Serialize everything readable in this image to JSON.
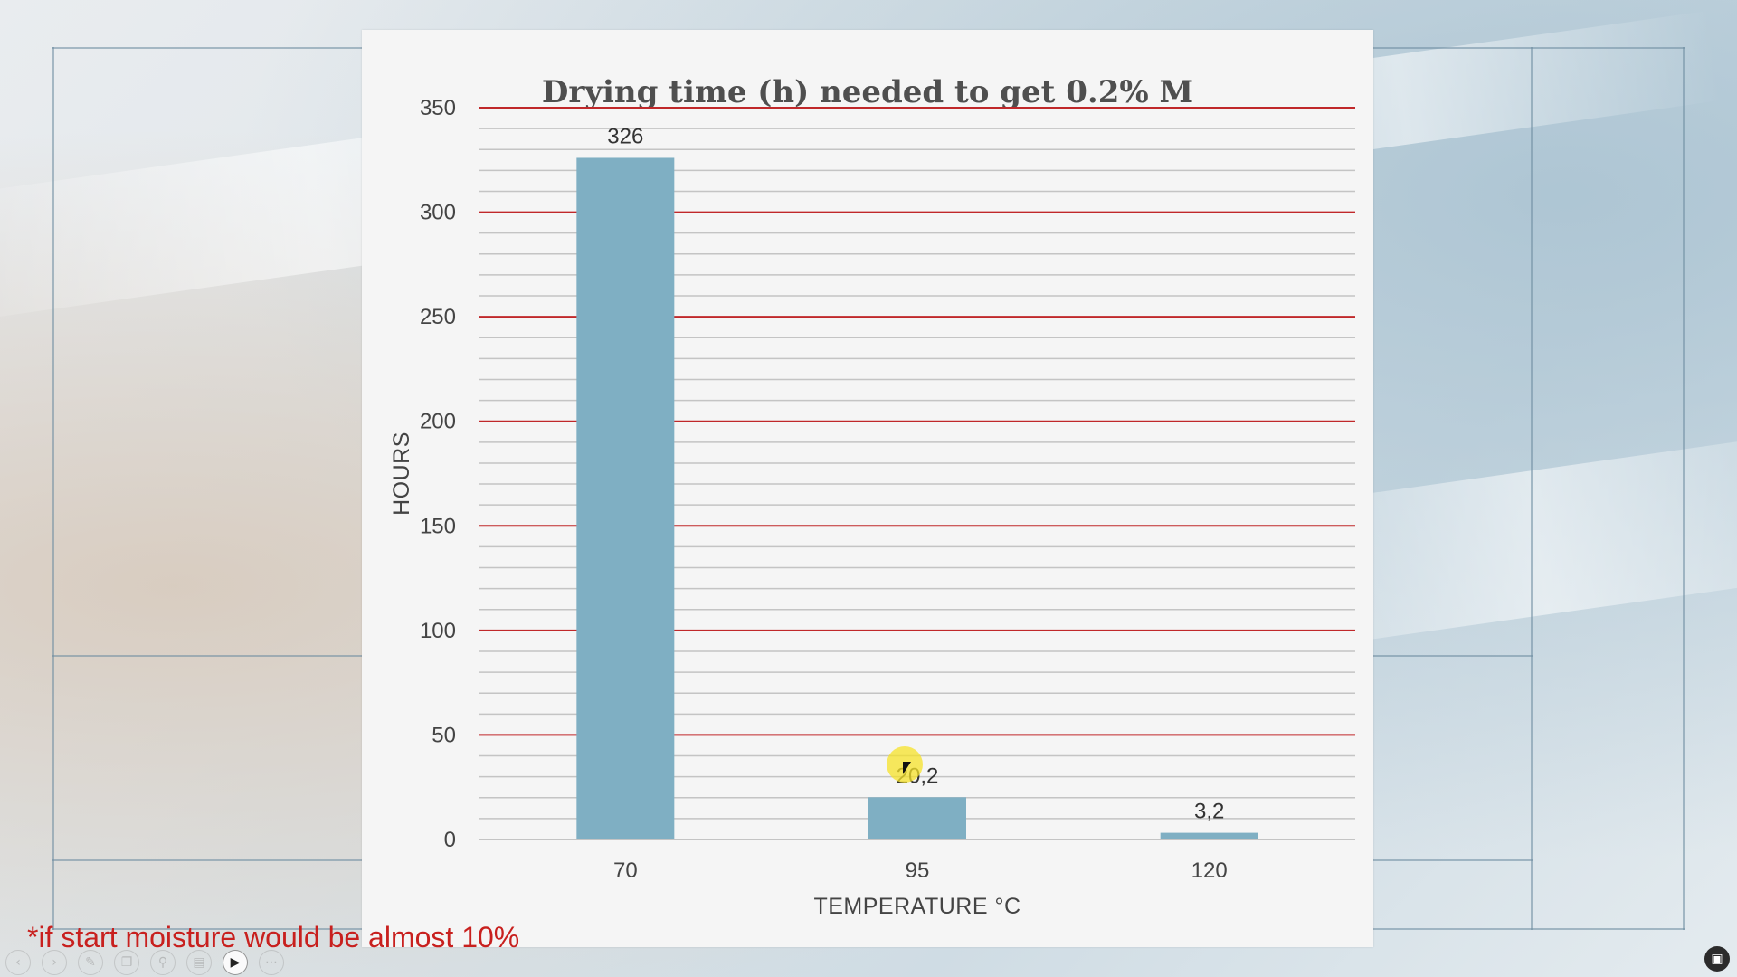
{
  "chart_data": {
    "type": "bar",
    "title": "Drying time (h) needed to get 0.2% M",
    "xlabel": "TEMPERATURE °C",
    "ylabel": "HOURS",
    "categories": [
      "70",
      "95",
      "120"
    ],
    "values": [
      326,
      20.2,
      3.2
    ],
    "data_labels": [
      "326",
      "20,2",
      "3,2"
    ],
    "ylim": [
      0,
      350
    ],
    "major_ticks": [
      0,
      50,
      100,
      150,
      200,
      250,
      300,
      350
    ],
    "minor_step": 10,
    "grid": true,
    "legend": "none",
    "colors": {
      "bar": "#7fafc3",
      "major_grid": "#c0282a",
      "minor_grid": "#c4c4c4",
      "title": "#4f4f4f"
    }
  },
  "footnote": "*if start moisture would be almost 10%",
  "toolbar": {
    "icons": [
      "prev-icon",
      "next-icon",
      "pen-icon",
      "copy-icon",
      "zoom-icon",
      "subtitles-icon",
      "camera-icon",
      "more-icon"
    ],
    "active_icon": "camera-icon"
  },
  "fullscreen_icon": "fullscreen-icon",
  "cursor_highlight_color": "#f5e128"
}
